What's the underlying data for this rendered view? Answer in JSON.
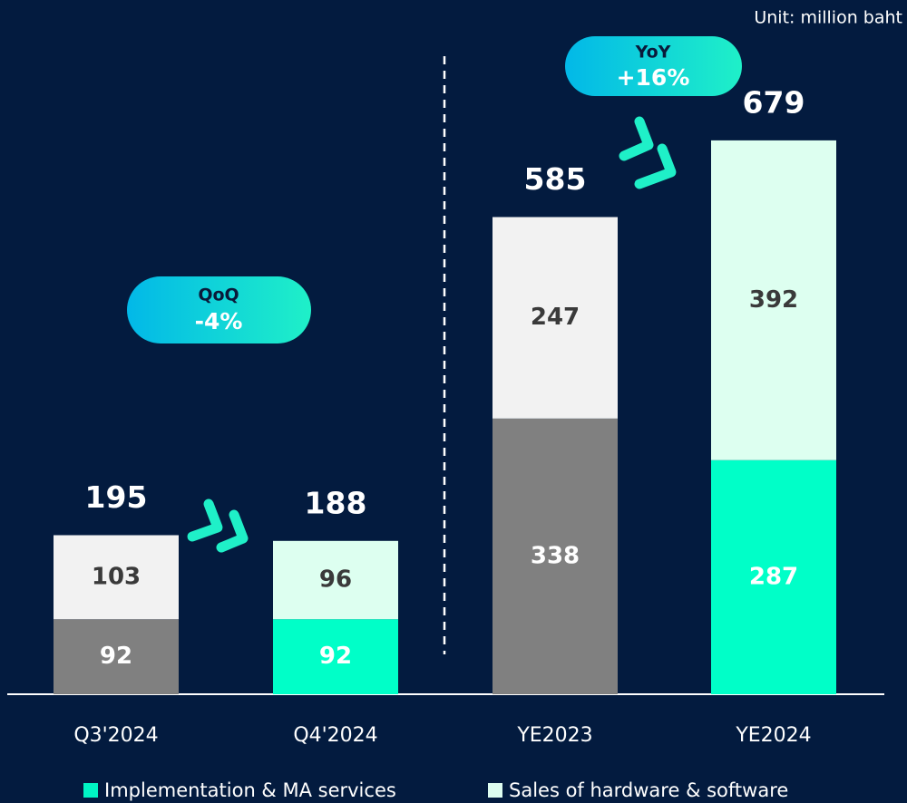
{
  "chart_data": {
    "type": "stacked_bar",
    "unit": "Unit: million baht",
    "categories": [
      "Q3'2024",
      "Q4'2024",
      "YE2023",
      "YE2024"
    ],
    "series": [
      {
        "name": "Implementation & MA services",
        "color": "#00f5c4",
        "values": [
          92,
          92,
          338,
          287
        ],
        "point_colors": [
          "#808080",
          "#00ffc8",
          "#808080",
          "#00ffc8"
        ]
      },
      {
        "name": "Sales of hardware & software",
        "color": "#ddfdf0",
        "values": [
          103,
          96,
          247,
          392
        ],
        "point_colors": [
          "#f2f2f2",
          "#ddfff0",
          "#f2f2f2",
          "#ddfff0"
        ]
      }
    ],
    "totals": [
      195,
      188,
      585,
      679
    ],
    "annotations": [
      {
        "title": "QoQ",
        "value": "-4%"
      },
      {
        "title": "YoY",
        "value": "+16%"
      }
    ],
    "ylim": [
      0,
      700
    ]
  }
}
